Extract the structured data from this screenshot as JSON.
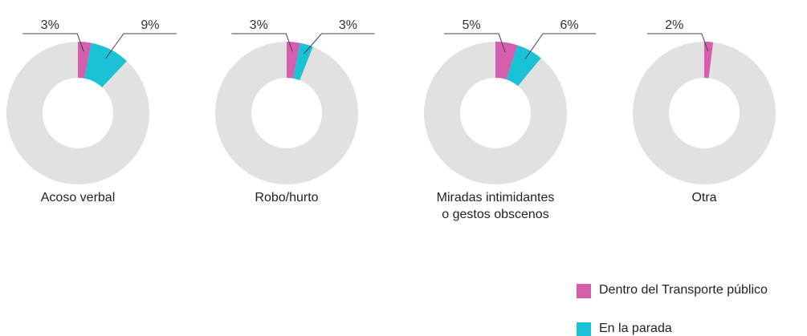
{
  "chart_data": {
    "type": "donut",
    "categories": [
      "Acoso verbal",
      "Robo/hurto",
      "Miradas intimidantes o gestos obscenos",
      "Otra"
    ],
    "series": [
      {
        "name": "Dentro del Transporte público",
        "color": "#d55fad",
        "values": [
          3,
          3,
          5,
          2
        ],
        "value_labels": [
          "3%",
          "3%",
          "5%",
          "2%"
        ]
      },
      {
        "name": "En la parada",
        "color": "#19c2d4",
        "values": [
          9,
          3,
          6,
          0
        ],
        "value_labels": [
          "9%",
          "3%",
          "6%",
          null
        ]
      }
    ],
    "rest_color": "#e1e1e1",
    "legend": "lower right"
  }
}
